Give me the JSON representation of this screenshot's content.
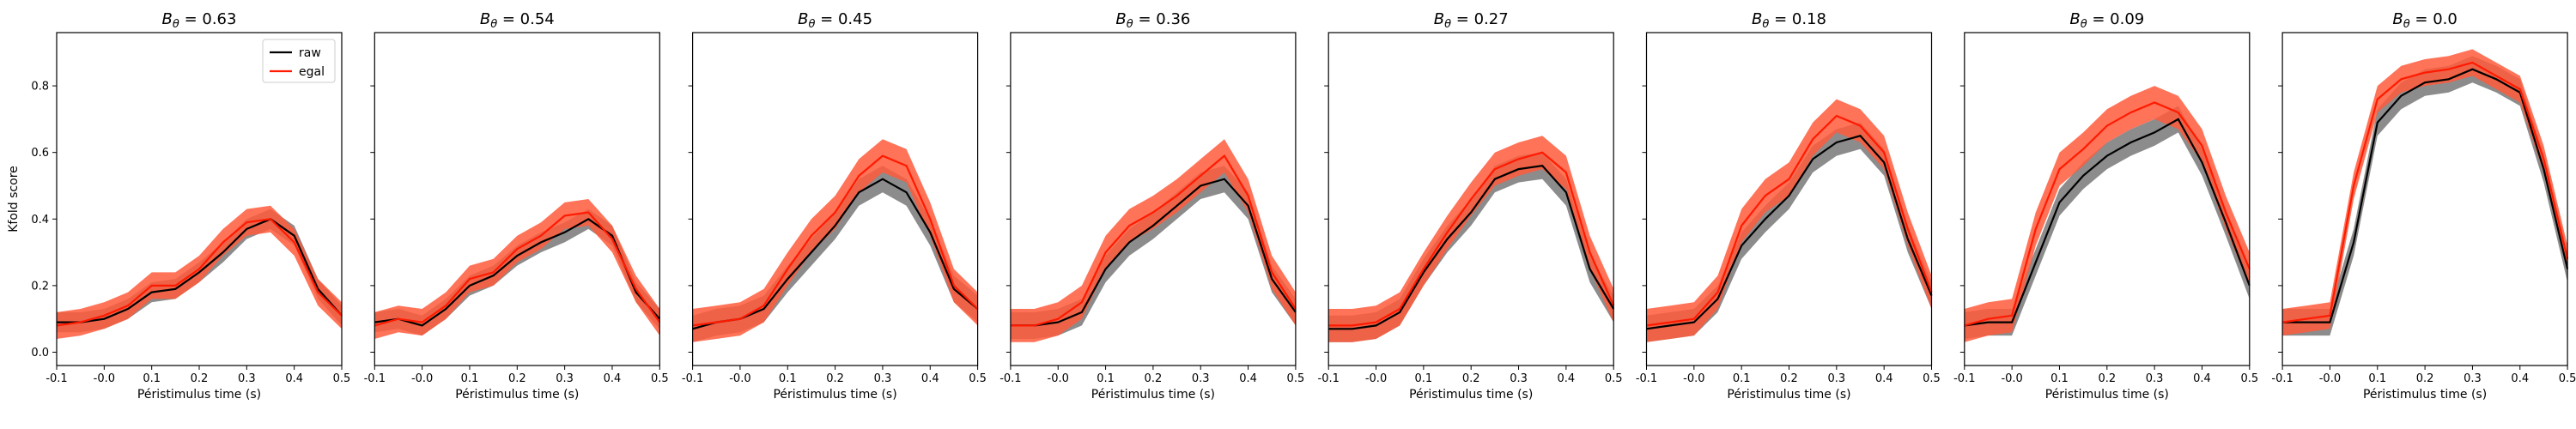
{
  "chart_data": {
    "type": "line",
    "description_shared": "8 small-multiple line panels with shaded error bands; shared y-axis",
    "ylabel": "Kfold score",
    "xlabel": "Péristimulus time (s)",
    "xlim": [
      -0.1,
      0.5
    ],
    "ylim": [
      -0.04,
      0.96
    ],
    "x_ticks": [
      -0.1,
      0.0,
      0.1,
      0.2,
      0.3,
      0.4,
      0.5
    ],
    "x_tick_labels": [
      "-0.1",
      "-0.0",
      "0.1",
      "0.2",
      "0.3",
      "0.4",
      "0.5"
    ],
    "y_ticks": [
      0.0,
      0.2,
      0.4,
      0.6,
      0.8
    ],
    "y_tick_labels": [
      "0.0",
      "0.2",
      "0.4",
      "0.6",
      "0.8"
    ],
    "legend": {
      "placement": "top-right",
      "panel_index": 0,
      "entries": [
        "raw",
        "egal"
      ]
    },
    "colors": {
      "raw": "#000000",
      "raw_band": "#808080",
      "egal": "#ff1a00",
      "egal_band": "#ff5a3c"
    },
    "x": [
      -0.1,
      -0.05,
      0.0,
      0.05,
      0.1,
      0.15,
      0.2,
      0.25,
      0.3,
      0.35,
      0.4,
      0.45,
      0.5
    ],
    "panels": [
      {
        "title": "B_θ = 0.63",
        "series": [
          {
            "name": "raw",
            "values": [
              0.09,
              0.09,
              0.1,
              0.13,
              0.18,
              0.19,
              0.24,
              0.3,
              0.37,
              0.4,
              0.35,
              0.19,
              0.11
            ],
            "band": 0.03
          },
          {
            "name": "egal",
            "values": [
              0.08,
              0.09,
              0.11,
              0.14,
              0.2,
              0.2,
              0.25,
              0.33,
              0.39,
              0.4,
              0.33,
              0.18,
              0.11
            ],
            "band": 0.04
          }
        ]
      },
      {
        "title": "B_θ = 0.54",
        "series": [
          {
            "name": "raw",
            "values": [
              0.09,
              0.1,
              0.08,
              0.13,
              0.2,
              0.23,
              0.29,
              0.33,
              0.36,
              0.4,
              0.35,
              0.18,
              0.1
            ],
            "band": 0.03
          },
          {
            "name": "egal",
            "values": [
              0.08,
              0.1,
              0.09,
              0.14,
              0.22,
              0.24,
              0.31,
              0.35,
              0.41,
              0.42,
              0.34,
              0.19,
              0.09
            ],
            "band": 0.04
          }
        ]
      },
      {
        "title": "B_θ = 0.45",
        "series": [
          {
            "name": "raw",
            "values": [
              0.07,
              0.09,
              0.1,
              0.13,
              0.22,
              0.3,
              0.38,
              0.48,
              0.52,
              0.48,
              0.36,
              0.19,
              0.13
            ],
            "band": 0.04
          },
          {
            "name": "egal",
            "values": [
              0.08,
              0.09,
              0.1,
              0.14,
              0.25,
              0.35,
              0.42,
              0.53,
              0.59,
              0.56,
              0.4,
              0.2,
              0.13
            ],
            "band": 0.05
          }
        ]
      },
      {
        "title": "B_θ = 0.36",
        "series": [
          {
            "name": "raw",
            "values": [
              0.08,
              0.08,
              0.09,
              0.12,
              0.25,
              0.33,
              0.38,
              0.44,
              0.5,
              0.52,
              0.44,
              0.22,
              0.12
            ],
            "band": 0.04
          },
          {
            "name": "egal",
            "values": [
              0.08,
              0.08,
              0.1,
              0.15,
              0.3,
              0.38,
              0.42,
              0.47,
              0.53,
              0.59,
              0.47,
              0.24,
              0.13
            ],
            "band": 0.05
          }
        ]
      },
      {
        "title": "B_θ = 0.27",
        "series": [
          {
            "name": "raw",
            "values": [
              0.07,
              0.07,
              0.08,
              0.12,
              0.24,
              0.34,
              0.42,
              0.52,
              0.55,
              0.56,
              0.48,
              0.25,
              0.13
            ],
            "band": 0.04
          },
          {
            "name": "egal",
            "values": [
              0.08,
              0.08,
              0.09,
              0.13,
              0.25,
              0.36,
              0.46,
              0.55,
              0.58,
              0.6,
              0.54,
              0.3,
              0.14
            ],
            "band": 0.05
          }
        ]
      },
      {
        "title": "B_θ = 0.18",
        "series": [
          {
            "name": "raw",
            "values": [
              0.07,
              0.08,
              0.09,
              0.16,
              0.32,
              0.4,
              0.47,
              0.58,
              0.63,
              0.65,
              0.57,
              0.34,
              0.17
            ],
            "band": 0.04
          },
          {
            "name": "egal",
            "values": [
              0.08,
              0.09,
              0.1,
              0.18,
              0.38,
              0.47,
              0.52,
              0.64,
              0.71,
              0.68,
              0.6,
              0.37,
              0.18
            ],
            "band": 0.05
          }
        ]
      },
      {
        "title": "B_θ = 0.09",
        "series": [
          {
            "name": "raw",
            "values": [
              0.08,
              0.09,
              0.09,
              0.27,
              0.45,
              0.53,
              0.59,
              0.63,
              0.66,
              0.7,
              0.57,
              0.39,
              0.2
            ],
            "band": 0.04
          },
          {
            "name": "egal",
            "values": [
              0.08,
              0.1,
              0.11,
              0.37,
              0.55,
              0.61,
              0.68,
              0.72,
              0.75,
              0.72,
              0.62,
              0.42,
              0.25
            ],
            "band": 0.05
          }
        ]
      },
      {
        "title": "B_θ = 0.0",
        "series": [
          {
            "name": "raw",
            "values": [
              0.09,
              0.09,
              0.09,
              0.33,
              0.69,
              0.77,
              0.81,
              0.82,
              0.85,
              0.82,
              0.78,
              0.55,
              0.25
            ],
            "band": 0.04
          },
          {
            "name": "egal",
            "values": [
              0.09,
              0.1,
              0.11,
              0.5,
              0.76,
              0.82,
              0.84,
              0.85,
              0.87,
              0.83,
              0.79,
              0.58,
              0.28
            ],
            "band": 0.04
          }
        ]
      }
    ]
  }
}
